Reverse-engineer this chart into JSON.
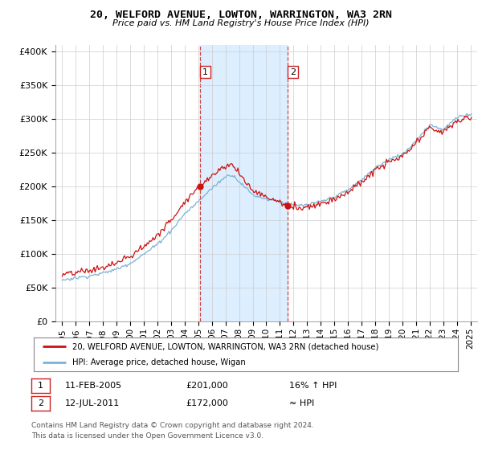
{
  "title": "20, WELFORD AVENUE, LOWTON, WARRINGTON, WA3 2RN",
  "subtitle": "Price paid vs. HM Land Registry's House Price Index (HPI)",
  "legend_line1": "20, WELFORD AVENUE, LOWTON, WARRINGTON, WA3 2RN (detached house)",
  "legend_line2": "HPI: Average price, detached house, Wigan",
  "annotation1_date": "11-FEB-2005",
  "annotation1_price": "£201,000",
  "annotation1_hpi": "16% ↑ HPI",
  "annotation2_date": "12-JUL-2011",
  "annotation2_price": "£172,000",
  "annotation2_hpi": "≈ HPI",
  "footer": "Contains HM Land Registry data © Crown copyright and database right 2024.\nThis data is licensed under the Open Government Licence v3.0.",
  "sale1_x": 2005.11,
  "sale1_y": 201000,
  "sale2_x": 2011.54,
  "sale2_y": 172000,
  "hpi_color": "#7ab4d8",
  "price_color": "#cc1111",
  "shade_color": "#ddeeff",
  "vline_color": "#cc4444",
  "box_color": "#cc2222",
  "ylim": [
    0,
    410000
  ],
  "xlim_start": 1994.5,
  "xlim_end": 2025.5,
  "yticks": [
    0,
    50000,
    100000,
    150000,
    200000,
    250000,
    300000,
    350000,
    400000
  ],
  "ytick_labels": [
    "£0",
    "£50K",
    "£100K",
    "£150K",
    "£200K",
    "£250K",
    "£300K",
    "£350K",
    "£400K"
  ],
  "xticks": [
    1995,
    1996,
    1997,
    1998,
    1999,
    2000,
    2001,
    2002,
    2003,
    2004,
    2005,
    2006,
    2007,
    2008,
    2009,
    2010,
    2011,
    2012,
    2013,
    2014,
    2015,
    2016,
    2017,
    2018,
    2019,
    2020,
    2021,
    2022,
    2023,
    2024,
    2025
  ]
}
